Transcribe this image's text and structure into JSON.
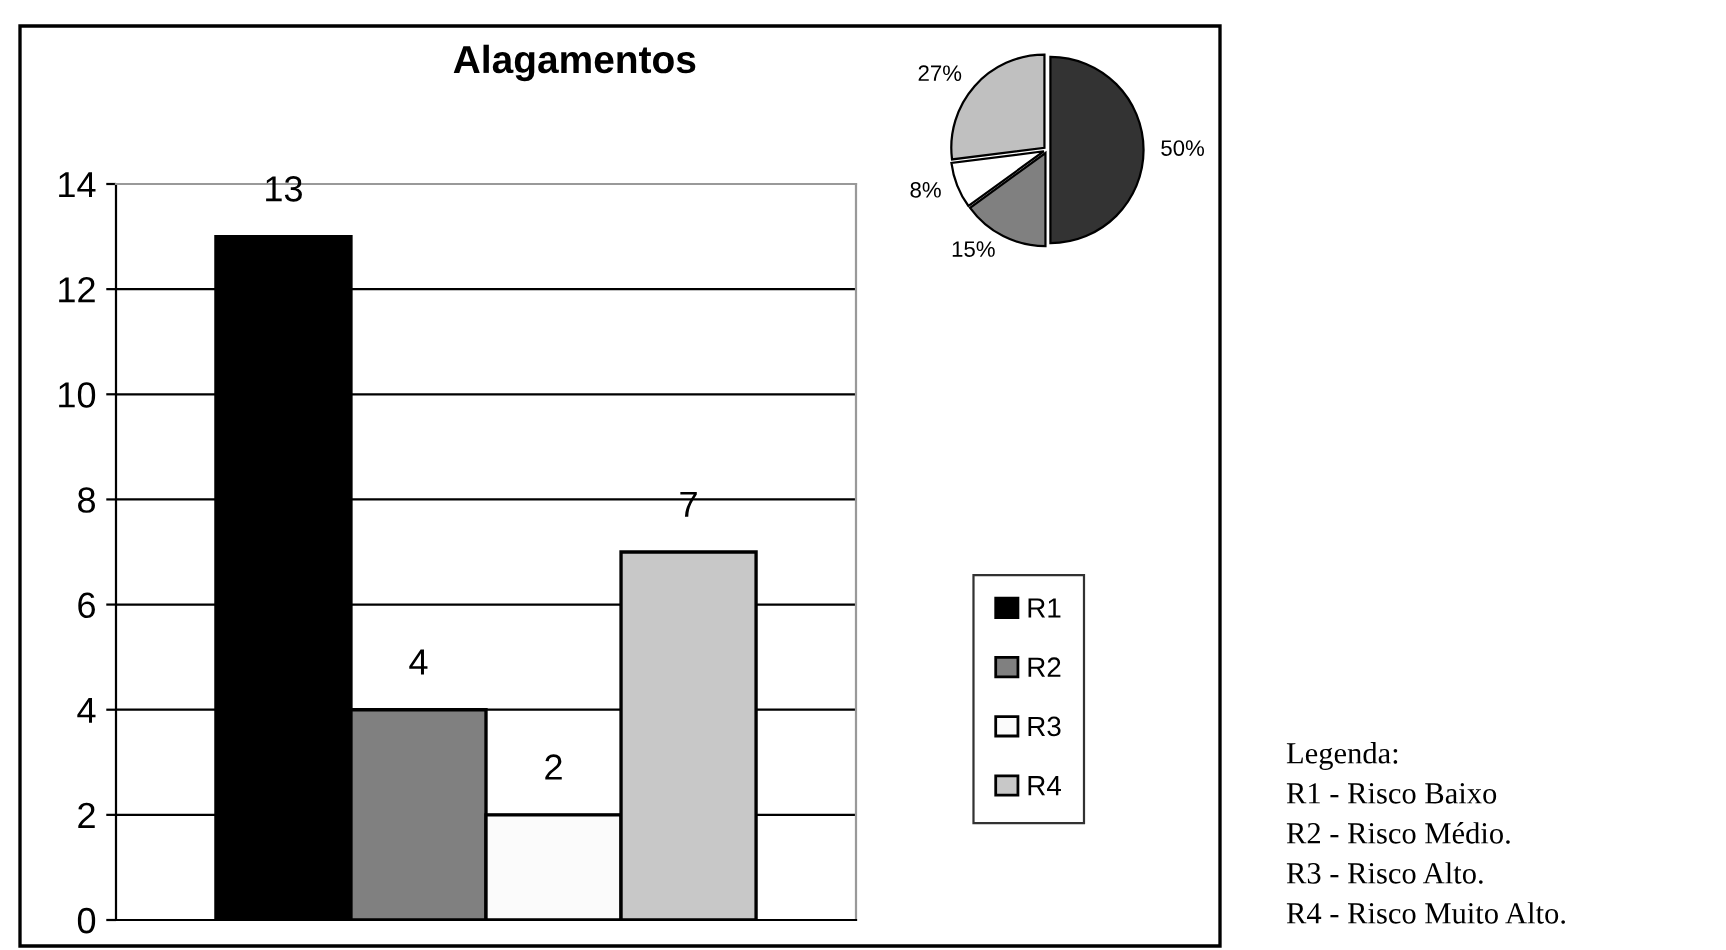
{
  "chart_data": [
    {
      "type": "bar",
      "title": "Alagamentos",
      "categories": [
        null
      ],
      "series": [
        {
          "name": "R1",
          "color": "#000000",
          "values": [
            13
          ]
        },
        {
          "name": "R2",
          "color": "#808080",
          "values": [
            4
          ]
        },
        {
          "name": "R3",
          "color": "#fbfbfb",
          "values": [
            2
          ]
        },
        {
          "name": "R4",
          "color": "#c8c8c8",
          "values": [
            7
          ]
        }
      ],
      "ylim": [
        0,
        14
      ],
      "yticks": [
        0,
        2,
        4,
        6,
        8,
        10,
        12,
        14
      ],
      "grid": "y",
      "legend": "right",
      "data_labels": true,
      "annotations": [
        "Legenda:",
        "R1 - Risco Baixo",
        "R2 - Risco Médio.",
        "R3 - Risco Alto.",
        "R4 - Risco Muito Alto."
      ]
    },
    {
      "type": "pie",
      "categories": [
        null,
        null,
        null,
        null
      ],
      "values": [
        50,
        15,
        8,
        27
      ],
      "colors": [
        "#333333",
        "#808080",
        "#ffffff",
        "#c0c0c0"
      ],
      "value_labels": [
        "50%",
        "15%",
        "8%",
        "27%"
      ]
    }
  ]
}
